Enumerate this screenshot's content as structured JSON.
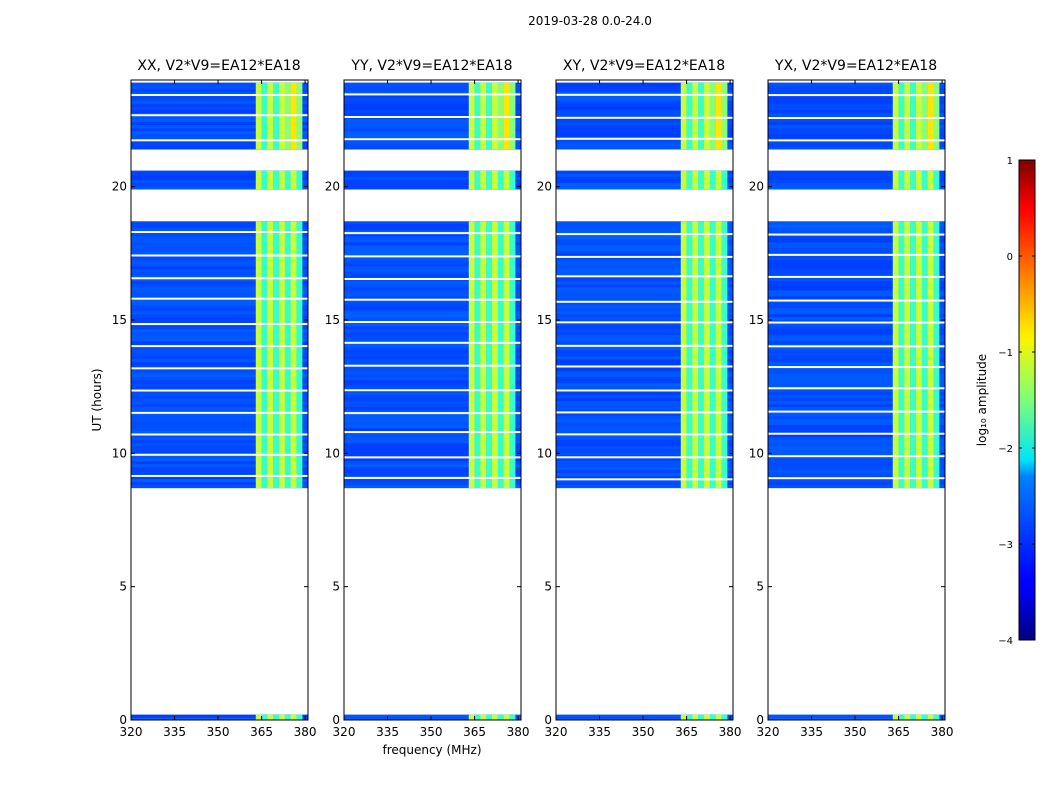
{
  "chart_data": {
    "type": "heatmap",
    "suptitle": "2019-03-28 0.0-24.0",
    "xlabel": "frequency (MHz)",
    "ylabel": "UT (hours)",
    "xlim": [
      320,
      381
    ],
    "ylim": [
      0,
      24
    ],
    "xticks": [
      "320",
      "335",
      "350",
      "365",
      "380"
    ],
    "yticks": [
      "0",
      "5",
      "10",
      "15",
      "20"
    ],
    "panels": [
      {
        "title": "XX, V2*V9=EA12*EA18",
        "pol": "XX"
      },
      {
        "title": "YY, V2*V9=EA12*EA18",
        "pol": "YY"
      },
      {
        "title": "XY, V2*V9=EA12*EA18",
        "pol": "XY"
      },
      {
        "title": "YX, V2*V9=EA12*EA18",
        "pol": "YX"
      }
    ],
    "colorbar": {
      "label": "log₁₀ amplitude",
      "min": -4,
      "max": 1,
      "ticks": [
        "1",
        "0",
        "−1",
        "−2",
        "−3",
        "−4"
      ],
      "colormap": "jet"
    },
    "data_time_ranges_ut_hours": [
      [
        0.0,
        0.2
      ],
      [
        8.7,
        18.7
      ],
      [
        19.9,
        20.6
      ],
      [
        21.4,
        23.9
      ]
    ],
    "strong_rfi_band_mhz": [
      363,
      379
    ],
    "background_log10_amplitude": -3,
    "rfi_log10_amplitude": -1.5
  }
}
